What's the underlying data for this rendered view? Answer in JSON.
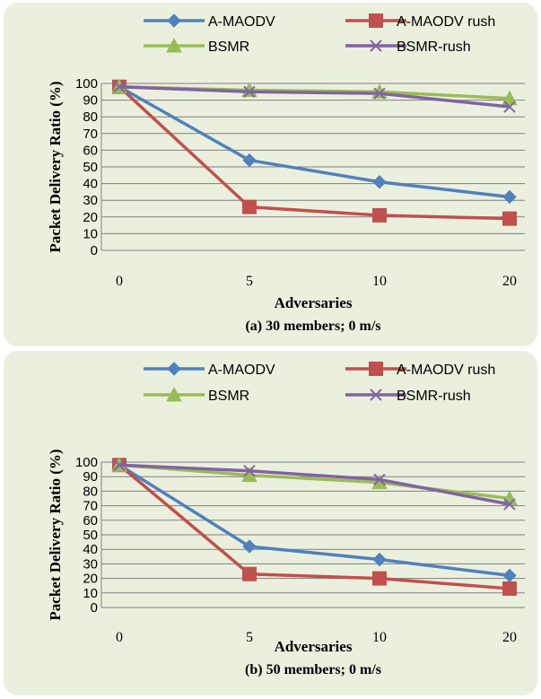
{
  "colors": {
    "A-MAODV": "#4f81bd",
    "A-MAODV rush": "#c0504d",
    "BSMR": "#9bbb59",
    "BSMR-rush": "#8064a2",
    "panel_bg": "#ebf0de",
    "grid": "#7f7f7f"
  },
  "chart_data": [
    {
      "type": "line",
      "categories": [
        "0",
        "5",
        "10",
        "20"
      ],
      "xlabel": "Adversaries",
      "ylabel": "Packet Delivery Ratio (%)",
      "caption": "(a) 30 members; 0 m/s",
      "ylim": [
        0,
        100
      ],
      "yticks": [
        "0",
        "10",
        "20",
        "30",
        "40",
        "50",
        "60",
        "70",
        "80",
        "90",
        "100"
      ],
      "grid": true,
      "legend": "top",
      "series": [
        {
          "name": "A-MAODV",
          "marker": "diamond",
          "values": [
            98,
            54,
            41,
            32
          ]
        },
        {
          "name": "A-MAODV rush",
          "marker": "square",
          "values": [
            98,
            26,
            21,
            19
          ]
        },
        {
          "name": "BSMR",
          "marker": "triangle",
          "values": [
            98,
            96,
            95,
            91
          ]
        },
        {
          "name": "BSMR-rush",
          "marker": "x",
          "values": [
            98,
            95,
            94,
            86
          ]
        }
      ]
    },
    {
      "type": "line",
      "categories": [
        "0",
        "5",
        "10",
        "20"
      ],
      "xlabel": "Adversaries",
      "ylabel": "Packet Delivery Ratio (%)",
      "caption": "(b) 50 members; 0 m/s",
      "ylim": [
        0,
        100
      ],
      "yticks": [
        "0",
        "10",
        "20",
        "30",
        "40",
        "50",
        "60",
        "70",
        "80",
        "90",
        "100"
      ],
      "grid": true,
      "legend": "top",
      "series": [
        {
          "name": "A-MAODV",
          "marker": "diamond",
          "values": [
            98,
            42,
            33,
            22
          ]
        },
        {
          "name": "A-MAODV rush",
          "marker": "square",
          "values": [
            98,
            23,
            20,
            13
          ]
        },
        {
          "name": "BSMR",
          "marker": "triangle",
          "values": [
            98,
            91,
            86,
            75
          ]
        },
        {
          "name": "BSMR-rush",
          "marker": "x",
          "values": [
            98,
            94,
            88,
            71
          ]
        }
      ]
    }
  ]
}
